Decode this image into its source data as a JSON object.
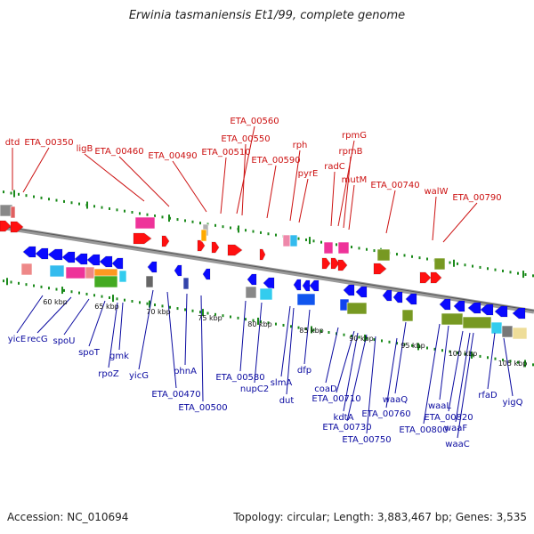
{
  "title": "Erwinia tasmaniensis Et1/99, complete genome",
  "footer": {
    "accession": "Accession: NC_010694",
    "summary": "Topology: circular; Length: 3,883,467 bp; Genes: 3,535"
  },
  "colors": {
    "top_strand": "#ff1010",
    "bottom_strand": "#0a0aff",
    "top_label": "#cc1111",
    "bottom_label": "#0a0aa0",
    "backbone": "#888888",
    "tick": "#1a8a1a"
  },
  "kbp_labels": [
    "60 kbp",
    "65 kbp",
    "70 kbp",
    "75 kbp",
    "80 kbp",
    "85 kbp",
    "90 kbp",
    "95 kbp",
    "100 kbp",
    "105 kbp"
  ],
  "top_labels": [
    "dtd",
    "ETA_00350",
    "ligB",
    "ETA_00460",
    "ETA_00490",
    "ETA_00510",
    "ETA_00560",
    "ETA_00550",
    "ETA_00590",
    "rph",
    "pyrE",
    "radC",
    "rpmG",
    "rpmB",
    "mutM",
    "ETA_00740",
    "walW",
    "ETA_00790"
  ],
  "bottom_labels": [
    "yicE",
    "recG",
    "spoU",
    "spoT",
    "rpoZ",
    "gmk",
    "yicG",
    "ETA_00470",
    "phnA",
    "ETA_00500",
    "ETA_00580",
    "nupC2",
    "slmA",
    "dut",
    "dfp",
    "coaD",
    "ETA_00710",
    "kdtA",
    "ETA_00730",
    "ETA_00750",
    "ETA_00760",
    "waaQ",
    "ETA_00800",
    "waaL",
    "ETA_00820",
    "waaF",
    "waaC",
    "rfaD",
    "yigQ"
  ]
}
